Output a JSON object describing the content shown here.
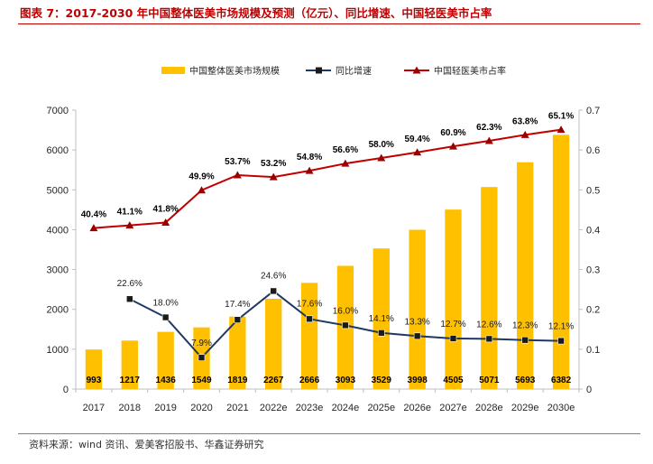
{
  "header": {
    "title": "图表 7：2017-2030 年中国整体医美市场规模及预测（亿元）、同比增速、中国轻医美市占率"
  },
  "footer": {
    "source": "资料来源：wind 资讯、爱美客招股书、华鑫证券研究"
  },
  "colors": {
    "bar": "#ffc000",
    "yoy_line": "#203864",
    "yoy_marker": "#1a1a1a",
    "share_line": "#c00000",
    "share_marker": "#9b0000",
    "axis": "#bfbfbf"
  },
  "chart_data": {
    "type": "bar",
    "categories": [
      "2017",
      "2018",
      "2019",
      "2020",
      "2021",
      "2022e",
      "2023e",
      "2024e",
      "2025e",
      "2026e",
      "2027e",
      "2028e",
      "2029e",
      "2030e"
    ],
    "y_left_ticks": [
      "0",
      "1000",
      "2000",
      "3000",
      "4000",
      "5000",
      "6000",
      "7000"
    ],
    "y_right_ticks": [
      "0",
      "0.1",
      "0.2",
      "0.3",
      "0.4",
      "0.5",
      "0.6",
      "0.7"
    ],
    "ylim_left": [
      0,
      7000
    ],
    "ylim_right": [
      0,
      0.7
    ],
    "grid": false,
    "legend_position": "top",
    "series": [
      {
        "name": "中国整体医美市场规模",
        "type": "bar",
        "axis": "left",
        "values": [
          993,
          1217,
          1436,
          1549,
          1819,
          2267,
          2666,
          3093,
          3529,
          3998,
          4505,
          5071,
          5693,
          6382
        ],
        "labels": [
          "993",
          "1217",
          "1436",
          "1549",
          "1819",
          "2267",
          "2666",
          "3093",
          "3529",
          "3998",
          "4505",
          "5071",
          "5693",
          "6382"
        ]
      },
      {
        "name": "同比增速",
        "type": "line",
        "axis": "right",
        "values": [
          null,
          0.226,
          0.18,
          0.079,
          0.174,
          0.246,
          0.176,
          0.16,
          0.141,
          0.133,
          0.127,
          0.126,
          0.123,
          0.121
        ],
        "labels": [
          "",
          "22.6%",
          "18.0%",
          "7.9%",
          "17.4%",
          "24.6%",
          "17.6%",
          "16.0%",
          "14.1%",
          "13.3%",
          "12.7%",
          "12.6%",
          "12.3%",
          "12.1%"
        ]
      },
      {
        "name": "中国轻医美市占率",
        "type": "line",
        "axis": "right",
        "values": [
          0.404,
          0.411,
          0.418,
          0.499,
          0.537,
          0.532,
          0.548,
          0.566,
          0.58,
          0.594,
          0.609,
          0.623,
          0.638,
          0.651
        ],
        "labels": [
          "40.4%",
          "41.1%",
          "41.8%",
          "49.9%",
          "53.7%",
          "53.2%",
          "54.8%",
          "56.6%",
          "58.0%",
          "59.4%",
          "60.9%",
          "62.3%",
          "63.8%",
          "65.1%"
        ]
      }
    ]
  }
}
